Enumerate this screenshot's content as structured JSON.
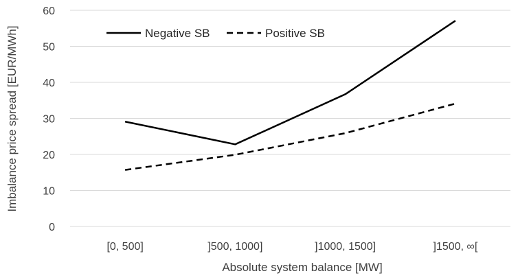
{
  "chart_data": {
    "type": "line",
    "title": "",
    "xlabel": "Absolute system balance [MW]",
    "ylabel": "Imbalance price spread [EUR/MWh]",
    "categories": [
      "[0, 500]",
      "]500, 1000]",
      "]1000, 1500]",
      "]1500, ∞["
    ],
    "series": [
      {
        "name": "Negative SB",
        "values": [
          29.1,
          22.8,
          36.7,
          57.1
        ],
        "color": "#000000",
        "line_style": "solid"
      },
      {
        "name": "Positive SB",
        "values": [
          15.7,
          19.9,
          25.9,
          34.1
        ],
        "color": "#000000",
        "line_style": "dashed"
      }
    ],
    "ylim": [
      0,
      60
    ],
    "yticks": [
      0,
      10,
      20,
      30,
      40,
      50,
      60
    ],
    "grid": true,
    "grid_color": "#d9d9d9",
    "legend_position": "top-left"
  }
}
